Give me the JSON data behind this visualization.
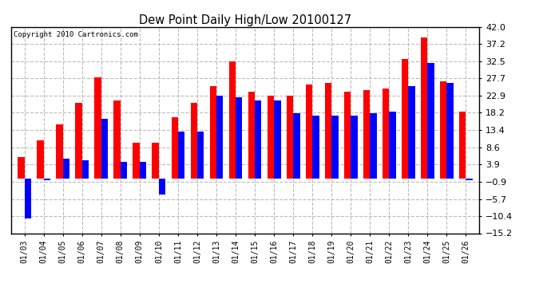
{
  "title": "Dew Point Daily High/Low 20100127",
  "copyright": "Copyright 2010 Cartronics.com",
  "dates": [
    "01/03",
    "01/04",
    "01/05",
    "01/06",
    "01/07",
    "01/08",
    "01/09",
    "01/10",
    "01/11",
    "01/12",
    "01/13",
    "01/14",
    "01/15",
    "01/16",
    "01/17",
    "01/18",
    "01/19",
    "01/20",
    "01/21",
    "01/22",
    "01/23",
    "01/24",
    "01/25",
    "01/26"
  ],
  "highs": [
    6.0,
    10.5,
    15.0,
    21.0,
    28.0,
    21.5,
    10.0,
    10.0,
    17.0,
    21.0,
    25.5,
    32.5,
    24.0,
    23.0,
    23.0,
    26.0,
    26.5,
    24.0,
    24.5,
    25.0,
    33.0,
    39.0,
    27.0,
    18.5
  ],
  "lows": [
    -11.0,
    -0.5,
    5.5,
    5.0,
    16.5,
    4.5,
    4.5,
    -4.5,
    13.0,
    13.0,
    23.0,
    22.5,
    21.5,
    21.5,
    18.0,
    17.5,
    17.5,
    17.5,
    18.0,
    18.5,
    25.5,
    32.0,
    26.5,
    -0.5
  ],
  "high_color": "#ff0000",
  "low_color": "#0000ff",
  "background_color": "#ffffff",
  "grid_color": "#bbbbbb",
  "ylim": [
    -15.2,
    42.0
  ],
  "yticks": [
    42.0,
    37.2,
    32.5,
    27.7,
    22.9,
    18.2,
    13.4,
    8.6,
    3.9,
    -0.9,
    -5.7,
    -10.4,
    -15.2
  ]
}
